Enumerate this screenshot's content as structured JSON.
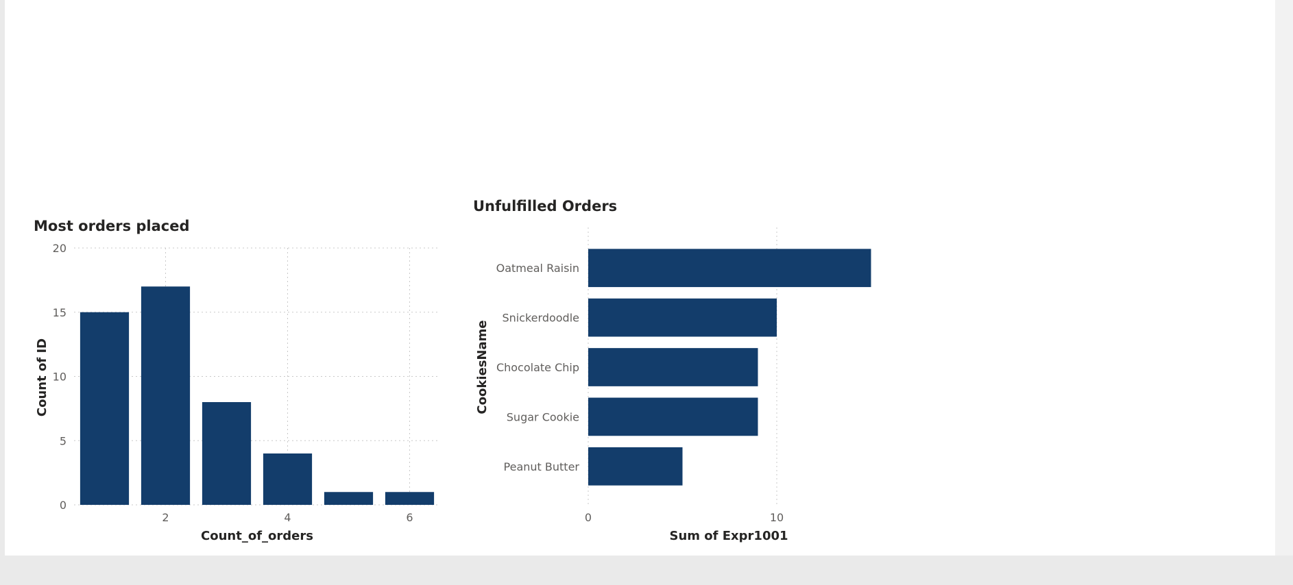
{
  "colors": {
    "bar": "#133d6b",
    "canvas": "#ffffff",
    "frame": "#eaeaea"
  },
  "chart_data": [
    {
      "type": "bar",
      "orientation": "vertical",
      "title": "Most orders placed",
      "xlabel": "Count_of_orders",
      "ylabel": "Count of ID",
      "x": [
        1,
        2,
        3,
        4,
        5,
        6
      ],
      "values": [
        15,
        17,
        8,
        4,
        1,
        1
      ],
      "xticks": [
        2,
        4,
        6
      ],
      "yticks": [
        0,
        5,
        10,
        15,
        20
      ],
      "ylim": [
        0,
        20
      ],
      "grid": true
    },
    {
      "type": "bar",
      "orientation": "horizontal",
      "title": "Unfulfilled Orders",
      "xlabel": "Sum of Expr1001",
      "ylabel": "CookiesName",
      "categories": [
        "Oatmeal Raisin",
        "Snickerdoodle",
        "Chocolate Chip",
        "Sugar Cookie",
        "Peanut Butter"
      ],
      "values": [
        15,
        10,
        9,
        9,
        5
      ],
      "xticks": [
        0,
        10
      ],
      "grid": true
    }
  ]
}
